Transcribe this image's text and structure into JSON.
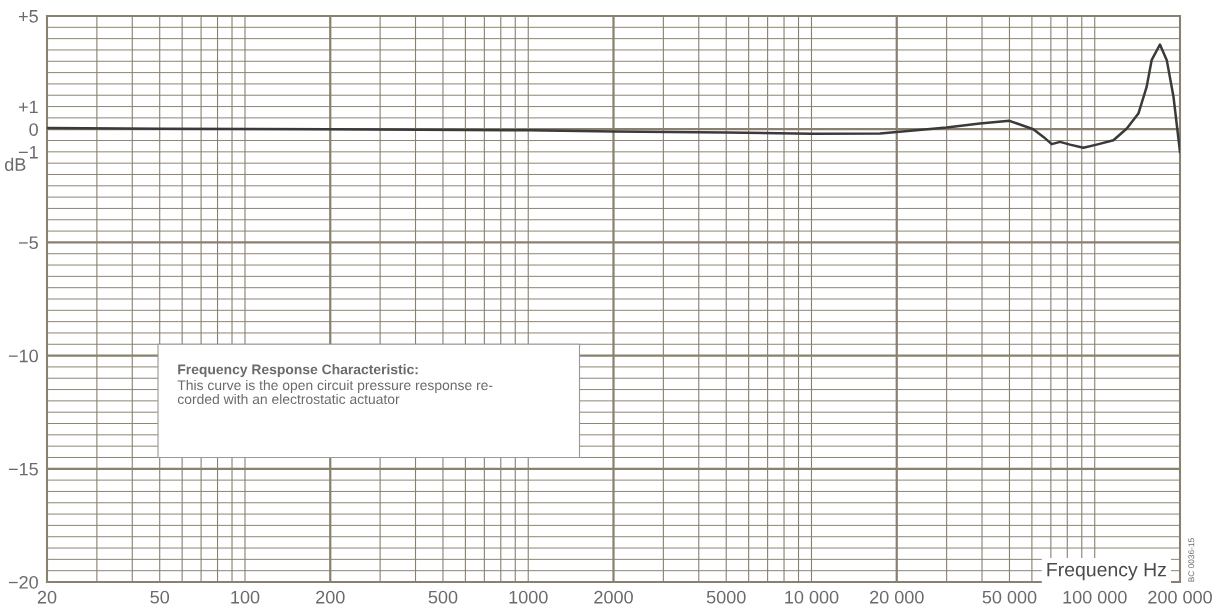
{
  "chart_data": {
    "type": "line",
    "xlabel": "Frequency Hz",
    "ylabel": "dB",
    "log": "x",
    "grid": true,
    "marker": "none",
    "line_style": "solid",
    "x": [
      20,
      50,
      200,
      1000,
      2000,
      5000,
      10000,
      17460,
      30000,
      39300,
      50000,
      60700,
      65900,
      70500,
      75400,
      81800,
      91200,
      101600,
      116400,
      129800,
      142600,
      152500,
      158800,
      169900,
      179600,
      189700,
      200000
    ],
    "series": [
      {
        "color": "#3a3a3a",
        "values": [
          0.05,
          0.02,
          0,
          -0.05,
          -0.1,
          -0.15,
          -0.2,
          -0.19,
          0.07,
          0.25,
          0.37,
          0,
          -0.34,
          -0.66,
          -0.56,
          -0.68,
          -0.82,
          -0.68,
          -0.49,
          0.03,
          0.69,
          1.87,
          3.05,
          3.74,
          3.05,
          1.43,
          -1.0
        ]
      }
    ],
    "xlim": [
      20,
      200000
    ],
    "ylim": [
      -20,
      5
    ],
    "xticks": [
      20,
      50,
      100,
      200,
      500,
      1000,
      2000,
      5000,
      {
        "value": 10000,
        "label": "10 000"
      },
      {
        "value": 20000,
        "label": "20 000"
      },
      {
        "value": 50000,
        "label": "50 000"
      },
      {
        "value": 100000,
        "label": "100 000"
      },
      {
        "value": 200000,
        "label": "200 000"
      }
    ],
    "yticks": [
      {
        "value": 5,
        "label": "+5"
      },
      {
        "value": 1,
        "label": "+1"
      },
      0,
      {
        "value": -1,
        "label": "−1"
      },
      {
        "value": -5,
        "label": "−5"
      },
      {
        "value": -10,
        "label": "−10"
      },
      {
        "value": -15,
        "label": "−15"
      },
      {
        "value": -20,
        "label": "−20"
      }
    ],
    "annotations": [
      "Frequency Response Characteristic:",
      "This curve is the open circuit pressure response re-\ncorded with an electrostatic actuator",
      "BC 0036-15"
    ]
  }
}
